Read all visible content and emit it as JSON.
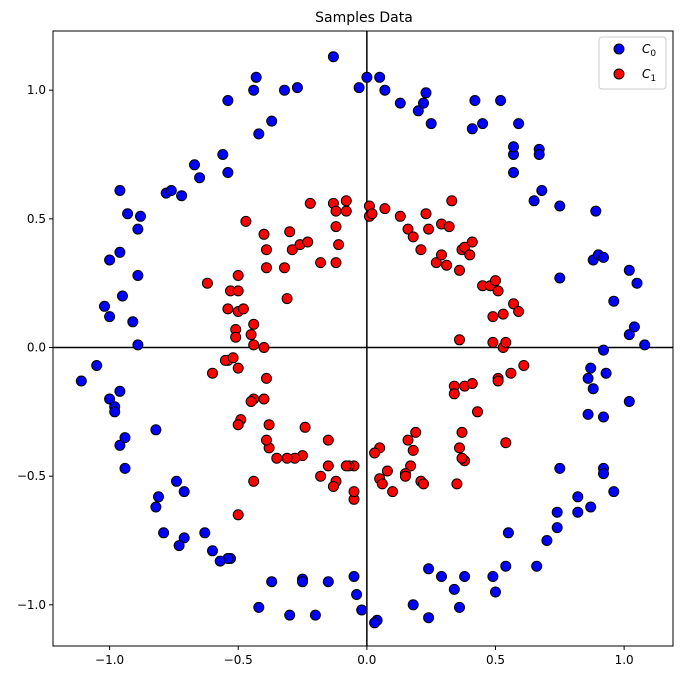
{
  "chart_data": {
    "type": "scatter",
    "title": "Samples Data",
    "xlabel": "",
    "ylabel": "",
    "xlim": [
      -1.22,
      1.19
    ],
    "ylim": [
      -1.16,
      1.23
    ],
    "xticks": [
      -1.0,
      -0.5,
      0.0,
      0.5,
      1.0
    ],
    "yticks": [
      -1.0,
      -0.5,
      0.0,
      0.5,
      1.0
    ],
    "xtick_labels": [
      "−1.0",
      "−0.5",
      "0.0",
      "0.5",
      "1.0"
    ],
    "ytick_labels": [
      "−1.0",
      "−0.5",
      "0.0",
      "0.5",
      "1.0"
    ],
    "grid": false,
    "axis_lines_at_zero": true,
    "legend_position": "top-right",
    "series": [
      {
        "name": "C_0",
        "color": "#0000ff",
        "points": [
          [
            -1.11,
            -0.13
          ],
          [
            -1.05,
            -0.07
          ],
          [
            -1.0,
            -0.2
          ],
          [
            -0.98,
            -0.23
          ],
          [
            -0.98,
            -0.25
          ],
          [
            -0.96,
            -0.17
          ],
          [
            -0.96,
            -0.38
          ],
          [
            -0.94,
            -0.35
          ],
          [
            -0.94,
            -0.47
          ],
          [
            -1.02,
            0.16
          ],
          [
            -1.0,
            0.12
          ],
          [
            -0.95,
            0.2
          ],
          [
            -0.91,
            0.1
          ],
          [
            -0.89,
            0.01
          ],
          [
            -0.89,
            0.28
          ],
          [
            -1.0,
            0.34
          ],
          [
            -0.96,
            0.37
          ],
          [
            -0.96,
            0.61
          ],
          [
            -0.93,
            0.52
          ],
          [
            -0.88,
            0.51
          ],
          [
            -0.89,
            0.46
          ],
          [
            -0.78,
            0.6
          ],
          [
            -0.76,
            0.61
          ],
          [
            -0.72,
            0.59
          ],
          [
            -0.67,
            0.71
          ],
          [
            -0.65,
            0.66
          ],
          [
            -0.56,
            0.75
          ],
          [
            -0.54,
            0.68
          ],
          [
            -0.54,
            0.96
          ],
          [
            -0.44,
            1.0
          ],
          [
            -0.43,
            1.05
          ],
          [
            -0.42,
            0.83
          ],
          [
            -0.37,
            0.88
          ],
          [
            -0.32,
            1.0
          ],
          [
            -0.27,
            1.01
          ],
          [
            -0.13,
            1.13
          ],
          [
            -0.03,
            1.01
          ],
          [
            0.0,
            1.05
          ],
          [
            0.05,
            1.05
          ],
          [
            0.07,
            1.0
          ],
          [
            0.13,
            0.95
          ],
          [
            0.2,
            0.92
          ],
          [
            0.22,
            0.95
          ],
          [
            0.23,
            0.99
          ],
          [
            0.25,
            0.87
          ],
          [
            0.41,
            0.85
          ],
          [
            0.42,
            0.96
          ],
          [
            0.45,
            0.87
          ],
          [
            0.52,
            0.96
          ],
          [
            0.57,
            0.75
          ],
          [
            0.57,
            0.78
          ],
          [
            0.57,
            0.68
          ],
          [
            0.59,
            0.87
          ],
          [
            0.65,
            0.57
          ],
          [
            0.67,
            0.77
          ],
          [
            0.67,
            0.75
          ],
          [
            0.68,
            0.61
          ],
          [
            0.75,
            0.55
          ],
          [
            0.75,
            0.27
          ],
          [
            0.88,
            0.34
          ],
          [
            0.89,
            0.53
          ],
          [
            0.9,
            0.36
          ],
          [
            0.92,
            0.35
          ],
          [
            0.96,
            0.18
          ],
          [
            1.02,
            0.3
          ],
          [
            1.05,
            0.25
          ],
          [
            1.02,
            0.05
          ],
          [
            1.04,
            0.08
          ],
          [
            1.08,
            0.01
          ],
          [
            0.92,
            -0.01
          ],
          [
            0.86,
            -0.12
          ],
          [
            0.87,
            -0.08
          ],
          [
            0.88,
            -0.16
          ],
          [
            0.93,
            -0.1
          ],
          [
            0.86,
            -0.26
          ],
          [
            0.92,
            -0.27
          ],
          [
            1.02,
            -0.21
          ],
          [
            0.92,
            -0.47
          ],
          [
            0.92,
            -0.49
          ],
          [
            0.96,
            -0.56
          ],
          [
            0.87,
            -0.62
          ],
          [
            0.82,
            -0.58
          ],
          [
            0.82,
            -0.64
          ],
          [
            0.75,
            -0.47
          ],
          [
            0.74,
            -0.64
          ],
          [
            0.74,
            -0.7
          ],
          [
            0.7,
            -0.75
          ],
          [
            0.66,
            -0.85
          ],
          [
            0.55,
            -0.72
          ],
          [
            0.54,
            -0.85
          ],
          [
            0.49,
            -0.89
          ],
          [
            0.5,
            -0.95
          ],
          [
            0.38,
            -0.89
          ],
          [
            0.36,
            -1.01
          ],
          [
            0.34,
            -0.94
          ],
          [
            0.29,
            -0.89
          ],
          [
            0.24,
            -0.86
          ],
          [
            0.24,
            -1.05
          ],
          [
            0.18,
            -1.0
          ],
          [
            0.04,
            -1.06
          ],
          [
            0.03,
            -1.07
          ],
          [
            -0.02,
            -1.02
          ],
          [
            -0.04,
            -0.96
          ],
          [
            -0.05,
            -0.89
          ],
          [
            -0.15,
            -0.91
          ],
          [
            -0.2,
            -1.04
          ],
          [
            -0.25,
            -0.9
          ],
          [
            -0.25,
            -0.91
          ],
          [
            -0.3,
            -1.04
          ],
          [
            -0.37,
            -0.91
          ],
          [
            -0.42,
            -1.01
          ],
          [
            -0.53,
            -0.82
          ],
          [
            -0.54,
            -0.82
          ],
          [
            -0.57,
            -0.83
          ],
          [
            -0.6,
            -0.79
          ],
          [
            -0.63,
            -0.72
          ],
          [
            -0.71,
            -0.74
          ],
          [
            -0.73,
            -0.77
          ],
          [
            -0.79,
            -0.72
          ],
          [
            -0.71,
            -0.56
          ],
          [
            -0.74,
            -0.52
          ],
          [
            -0.81,
            -0.58
          ],
          [
            -0.82,
            -0.62
          ],
          [
            -0.82,
            -0.32
          ]
        ]
      },
      {
        "name": "C_1",
        "color": "#ff0000",
        "points": [
          [
            -0.62,
            0.25
          ],
          [
            -0.54,
            0.15
          ],
          [
            -0.53,
            0.22
          ],
          [
            -0.5,
            0.22
          ],
          [
            -0.5,
            0.28
          ],
          [
            -0.5,
            0.14
          ],
          [
            -0.48,
            0.15
          ],
          [
            -0.44,
            0.09
          ],
          [
            -0.45,
            0.05
          ],
          [
            -0.51,
            0.07
          ],
          [
            -0.51,
            0.04
          ],
          [
            -0.47,
            0.49
          ],
          [
            -0.4,
            0.44
          ],
          [
            -0.39,
            0.38
          ],
          [
            -0.39,
            0.31
          ],
          [
            -0.32,
            0.31
          ],
          [
            -0.31,
            0.19
          ],
          [
            -0.3,
            0.45
          ],
          [
            -0.29,
            0.38
          ],
          [
            -0.26,
            0.4
          ],
          [
            -0.23,
            0.41
          ],
          [
            -0.22,
            0.56
          ],
          [
            -0.18,
            0.33
          ],
          [
            -0.13,
            0.56
          ],
          [
            -0.12,
            0.53
          ],
          [
            -0.12,
            0.47
          ],
          [
            -0.12,
            0.33
          ],
          [
            -0.11,
            0.4
          ],
          [
            -0.08,
            0.53
          ],
          [
            -0.08,
            0.57
          ],
          [
            0.01,
            0.51
          ],
          [
            0.01,
            0.55
          ],
          [
            0.02,
            0.52
          ],
          [
            0.07,
            0.54
          ],
          [
            0.13,
            0.51
          ],
          [
            0.16,
            0.46
          ],
          [
            0.18,
            0.43
          ],
          [
            0.21,
            0.38
          ],
          [
            0.23,
            0.52
          ],
          [
            0.24,
            0.46
          ],
          [
            0.27,
            0.33
          ],
          [
            0.29,
            0.48
          ],
          [
            0.29,
            0.36
          ],
          [
            0.31,
            0.32
          ],
          [
            0.32,
            0.47
          ],
          [
            0.33,
            0.57
          ],
          [
            0.36,
            0.3
          ],
          [
            0.37,
            0.38
          ],
          [
            0.38,
            0.39
          ],
          [
            0.4,
            0.36
          ],
          [
            0.41,
            0.41
          ],
          [
            0.45,
            0.24
          ],
          [
            0.48,
            0.24
          ],
          [
            0.49,
            0.12
          ],
          [
            0.49,
            0.02
          ],
          [
            0.5,
            0.26
          ],
          [
            0.51,
            0.22
          ],
          [
            0.53,
            0.13
          ],
          [
            0.53,
            -0.0
          ],
          [
            0.54,
            0.02
          ],
          [
            0.57,
            0.17
          ],
          [
            0.59,
            0.14
          ],
          [
            0.36,
            0.03
          ],
          [
            0.34,
            -0.15
          ],
          [
            0.34,
            -0.18
          ],
          [
            0.38,
            -0.15
          ],
          [
            0.41,
            -0.14
          ],
          [
            0.51,
            -0.12
          ],
          [
            0.51,
            -0.13
          ],
          [
            0.56,
            -0.1
          ],
          [
            0.61,
            -0.07
          ],
          [
            0.43,
            -0.25
          ],
          [
            0.37,
            -0.33
          ],
          [
            0.38,
            -0.44
          ],
          [
            0.37,
            -0.43
          ],
          [
            0.36,
            -0.39
          ],
          [
            0.35,
            -0.53
          ],
          [
            0.54,
            -0.37
          ],
          [
            0.19,
            -0.33
          ],
          [
            0.16,
            -0.36
          ],
          [
            0.18,
            -0.4
          ],
          [
            0.17,
            -0.46
          ],
          [
            0.15,
            -0.49
          ],
          [
            0.15,
            -0.5
          ],
          [
            0.21,
            -0.52
          ],
          [
            0.22,
            -0.53
          ],
          [
            0.1,
            -0.56
          ],
          [
            0.05,
            -0.39
          ],
          [
            0.03,
            -0.41
          ],
          [
            0.05,
            -0.51
          ],
          [
            0.06,
            -0.53
          ],
          [
            0.08,
            -0.48
          ],
          [
            -0.05,
            -0.46
          ],
          [
            -0.05,
            -0.59
          ],
          [
            -0.05,
            -0.56
          ],
          [
            -0.07,
            -0.46
          ],
          [
            -0.08,
            -0.46
          ],
          [
            -0.12,
            -0.52
          ],
          [
            -0.13,
            -0.54
          ],
          [
            -0.15,
            -0.46
          ],
          [
            -0.18,
            -0.5
          ],
          [
            -0.15,
            -0.36
          ],
          [
            -0.25,
            -0.42
          ],
          [
            -0.24,
            -0.31
          ],
          [
            -0.28,
            -0.43
          ],
          [
            -0.31,
            -0.43
          ],
          [
            -0.35,
            -0.43
          ],
          [
            -0.38,
            -0.39
          ],
          [
            -0.39,
            -0.36
          ],
          [
            -0.38,
            -0.3
          ],
          [
            -0.4,
            -0.2
          ],
          [
            -0.44,
            -0.2
          ],
          [
            -0.45,
            -0.21
          ],
          [
            -0.44,
            -0.52
          ],
          [
            -0.5,
            -0.65
          ],
          [
            -0.49,
            -0.28
          ],
          [
            -0.5,
            -0.3
          ],
          [
            -0.39,
            -0.12
          ],
          [
            -0.4,
            0.0
          ],
          [
            -0.5,
            -0.08
          ],
          [
            -0.54,
            -0.05
          ],
          [
            -0.55,
            -0.05
          ],
          [
            -0.44,
            0.01
          ],
          [
            -0.6,
            -0.1
          ],
          [
            -0.52,
            -0.04
          ]
        ]
      }
    ]
  },
  "legend": {
    "items": [
      {
        "label": "C",
        "sub": "0",
        "color": "#0000ff"
      },
      {
        "label": "C",
        "sub": "1",
        "color": "#ff0000"
      }
    ]
  }
}
